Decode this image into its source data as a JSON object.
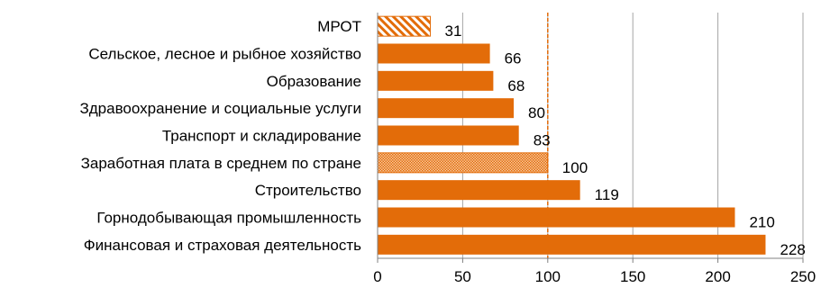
{
  "chart_data": {
    "type": "bar",
    "orientation": "horizontal",
    "categories": [
      "МРОТ",
      "Сельское, лесное и рыбное хозяйство",
      "Образование",
      "Здравоохранение и социальные услуги",
      "Транспорт и складирование",
      "Заработная плата в среднем по стране",
      "Строительство",
      "Горнодобывающая промышленность",
      "Финансовая и страховая деятельность"
    ],
    "values": [
      31,
      66,
      68,
      80,
      83,
      100,
      119,
      210,
      228
    ],
    "bar_styles": [
      "hatched",
      "solid",
      "solid",
      "solid",
      "solid",
      "dotted",
      "solid",
      "solid",
      "solid"
    ],
    "value_labels": [
      "31",
      "66",
      "68",
      "80",
      "83",
      "100",
      "119",
      "210",
      "228"
    ],
    "xlim": [
      0,
      250
    ],
    "xticks": [
      0,
      50,
      100,
      150,
      200,
      250
    ],
    "xtick_labels": [
      "0",
      "50",
      "100",
      "150",
      "200",
      "250"
    ],
    "reference_line": 100,
    "grid": "vertical",
    "title": "",
    "xlabel": "",
    "ylabel": "",
    "colors": {
      "bar": "#E36C09",
      "reference_line": "#E36C09",
      "grid": "#A6A6A6",
      "axis": "#808080",
      "pattern_background": "#FFFFFF"
    }
  }
}
